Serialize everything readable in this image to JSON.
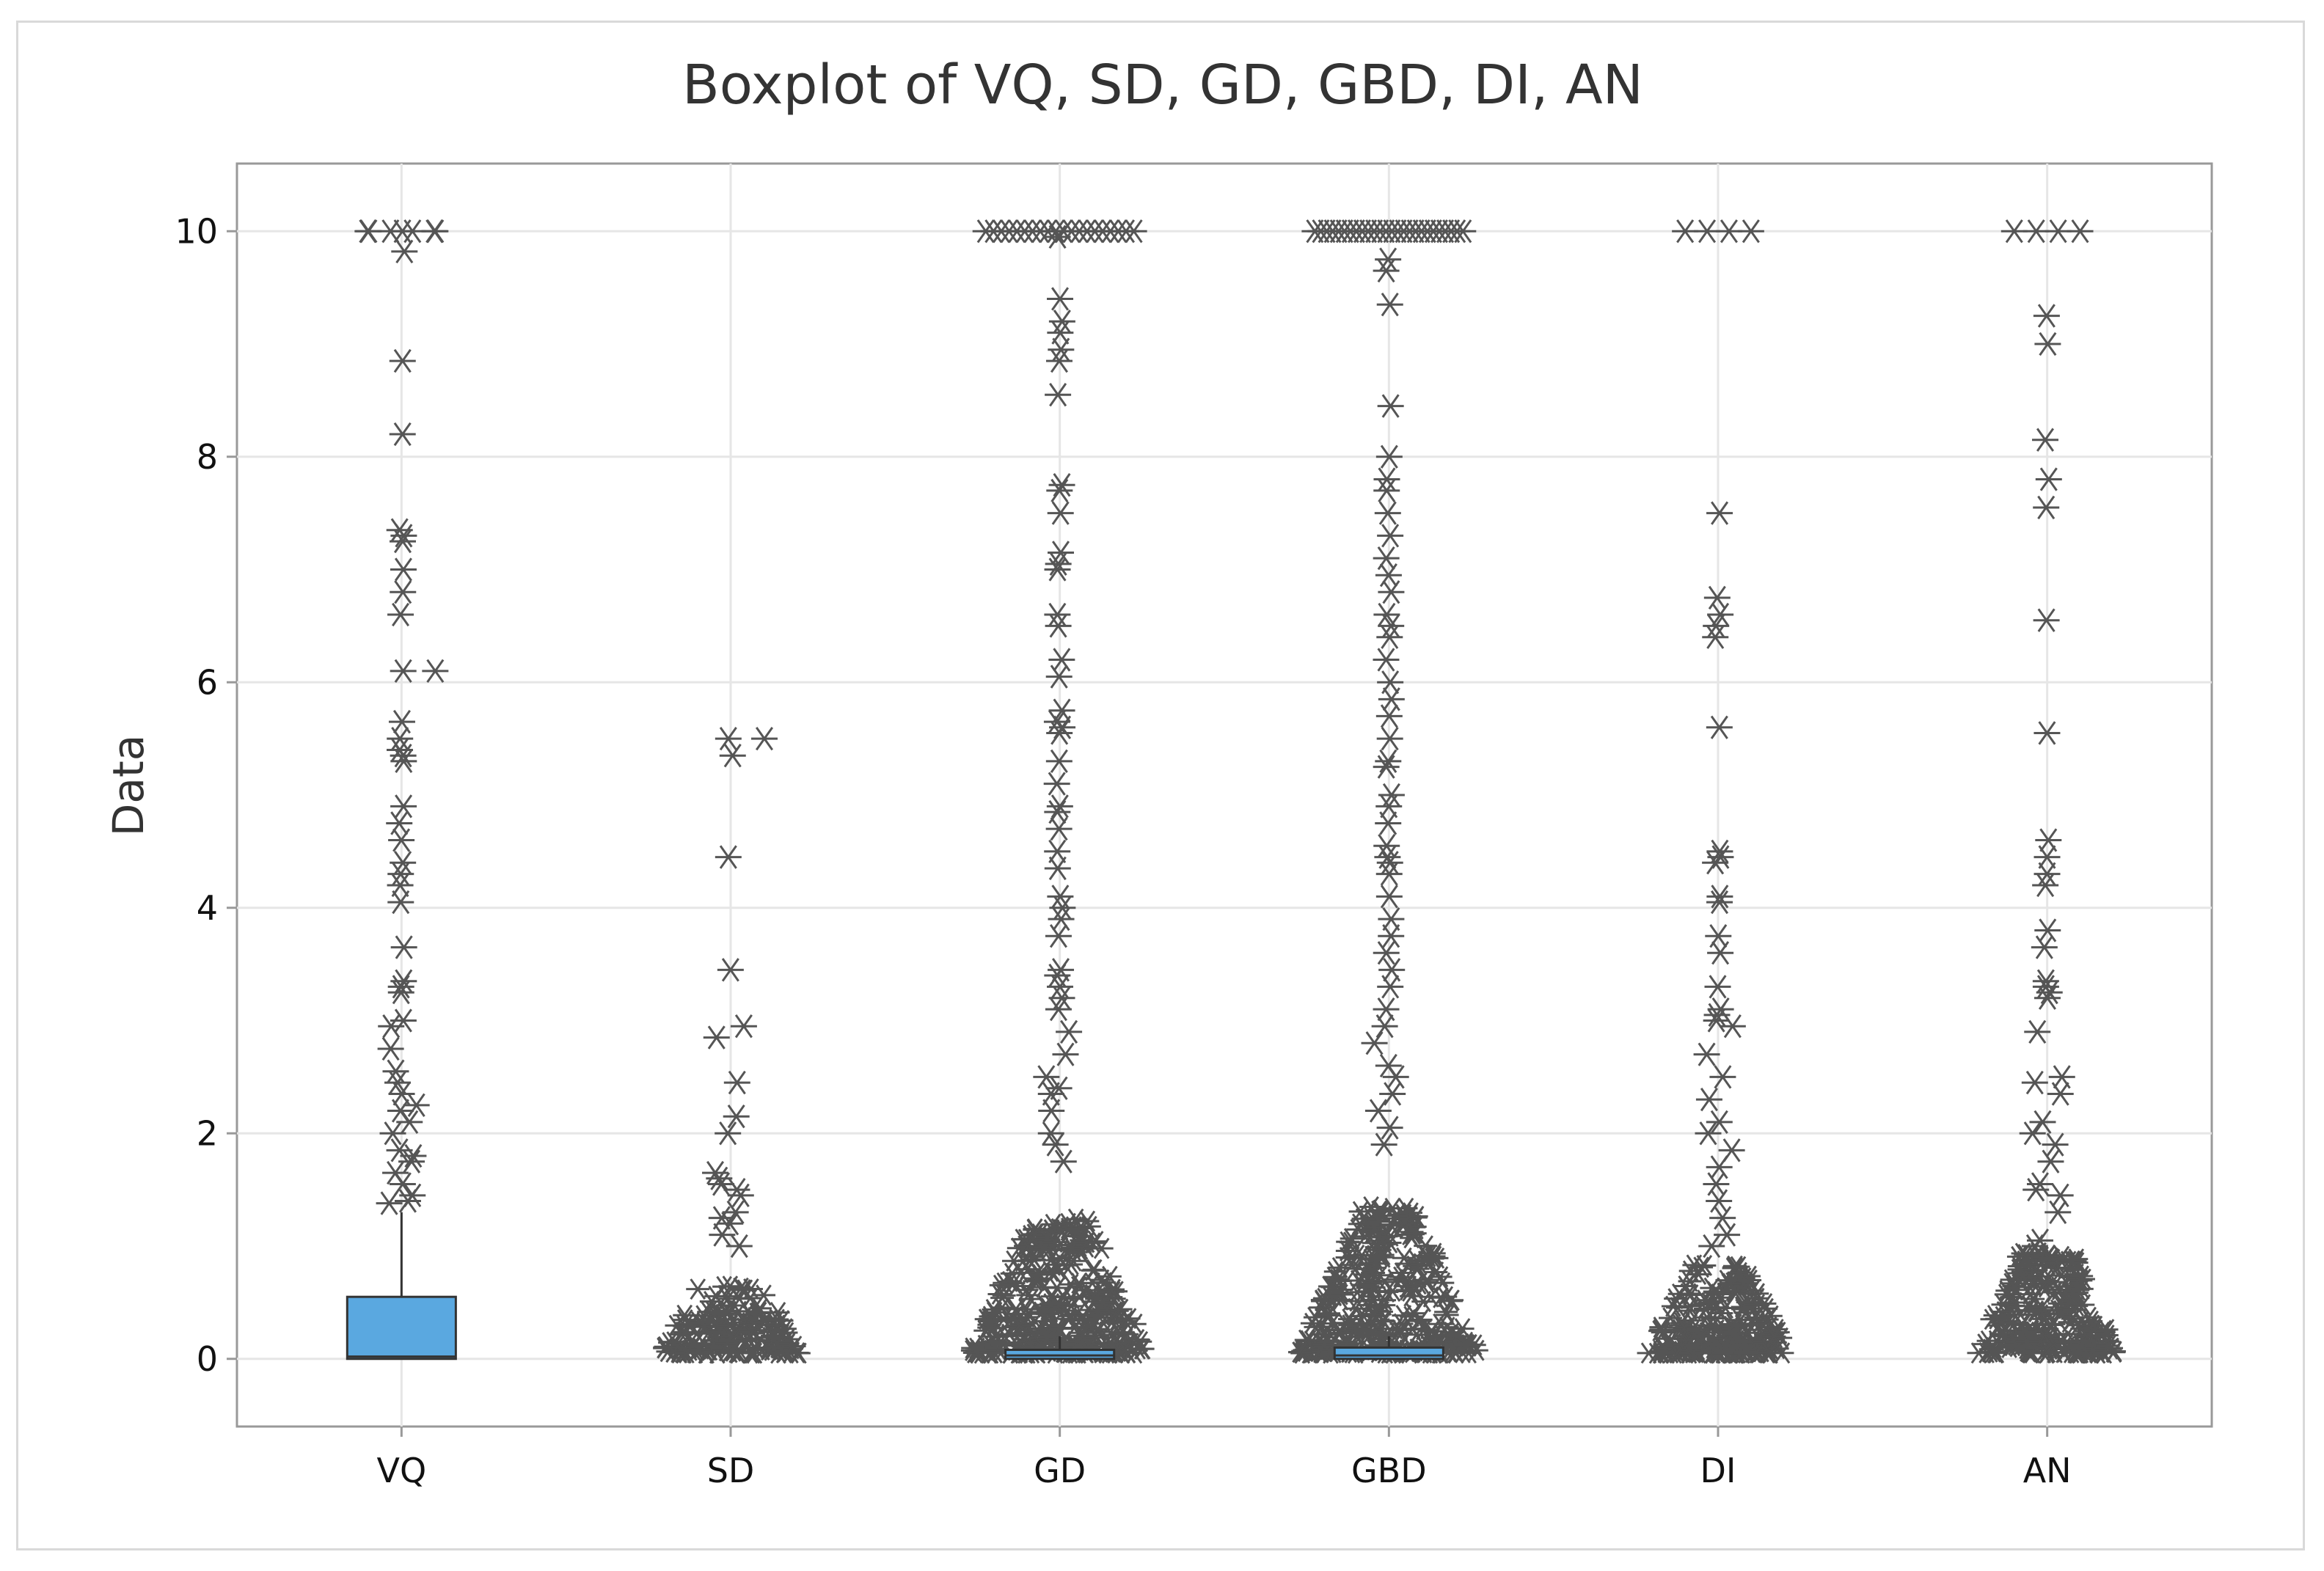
{
  "chart_data": {
    "type": "boxplot",
    "title": "Boxplot of VQ, SD, GD, GBD, DI, AN",
    "xlabel": "",
    "ylabel": "Data",
    "ylim": [
      -0.6,
      10.6
    ],
    "yticks": [
      0,
      2,
      4,
      6,
      8,
      10
    ],
    "grid": true,
    "box_color": "#5aa8e0",
    "outlier_color": "#555555",
    "outlier_symbol": "asterisk",
    "series": [
      {
        "name": "VQ",
        "box": {
          "q1": 0.0,
          "median": 0.02,
          "q3": 0.55,
          "whisker_low": 0.0,
          "whisker_high": 1.3
        },
        "outliers": [
          10,
          10,
          10,
          9.82,
          8.85,
          8.2,
          7.35,
          7.3,
          7.25,
          7.0,
          6.8,
          6.6,
          6.1,
          6.1,
          5.65,
          5.5,
          5.4,
          5.35,
          5.3,
          4.9,
          4.75,
          4.6,
          4.4,
          4.3,
          4.2,
          4.05,
          3.65,
          3.35,
          3.3,
          3.25,
          3.0,
          2.95,
          2.75,
          2.55,
          2.45,
          2.35,
          2.25,
          2.2,
          2.1,
          2.0,
          1.85,
          1.8,
          1.75,
          1.65,
          1.55,
          1.45,
          1.4,
          1.38
        ]
      },
      {
        "name": "SD",
        "box": {
          "q1": 0.0,
          "median": 0.0,
          "q3": 0.0,
          "whisker_low": 0.0,
          "whisker_high": 0.0
        },
        "outliers": [
          5.5,
          5.5,
          5.35,
          4.45,
          3.45,
          2.95,
          2.85,
          2.45,
          2.15,
          2.0,
          1.65,
          1.6,
          1.55,
          1.5,
          1.45,
          1.3,
          1.25,
          1.2,
          1.1,
          1.0
        ]
      },
      {
        "name": "GD",
        "box": {
          "q1": 0.0,
          "median": 0.03,
          "q3": 0.08,
          "whisker_low": 0.0,
          "whisker_high": 0.2
        },
        "outliers": [
          9.95,
          9.4,
          9.2,
          9.1,
          8.95,
          8.85,
          8.55,
          7.75,
          7.7,
          7.5,
          7.15,
          7.05,
          7.0,
          6.6,
          6.5,
          6.2,
          6.05,
          5.75,
          5.65,
          5.6,
          5.55,
          5.3,
          5.1,
          4.9,
          4.85,
          4.7,
          4.5,
          4.35,
          4.1,
          4.0,
          3.9,
          3.75,
          3.45,
          3.4,
          3.3,
          3.2,
          3.1,
          2.9,
          2.7,
          2.5,
          2.4,
          2.35,
          2.2,
          2.0,
          1.9,
          1.75
        ]
      },
      {
        "name": "GBD",
        "box": {
          "q1": 0.0,
          "median": 0.03,
          "q3": 0.1,
          "whisker_low": 0.0,
          "whisker_high": 0.2
        },
        "outliers": [
          9.75,
          9.65,
          9.35,
          8.45,
          8.0,
          7.8,
          7.7,
          7.5,
          7.3,
          7.1,
          6.95,
          6.8,
          6.6,
          6.5,
          6.4,
          6.2,
          6.0,
          5.85,
          5.7,
          5.5,
          5.3,
          5.25,
          5.0,
          4.9,
          4.75,
          4.55,
          4.45,
          4.4,
          4.3,
          4.1,
          3.9,
          3.75,
          3.6,
          3.45,
          3.3,
          3.1,
          2.95,
          2.8,
          2.6,
          2.5,
          2.35,
          2.2,
          2.05,
          1.9
        ]
      },
      {
        "name": "DI",
        "box": {
          "q1": 0.0,
          "median": 0.0,
          "q3": 0.0,
          "whisker_low": 0.0,
          "whisker_high": 0.0
        },
        "outliers": [
          7.5,
          6.75,
          6.6,
          6.5,
          6.4,
          5.6,
          4.5,
          4.45,
          4.4,
          4.1,
          4.05,
          3.75,
          3.6,
          3.3,
          3.1,
          3.05,
          3.0,
          2.95,
          2.7,
          2.5,
          2.3,
          2.1,
          2.0,
          1.85,
          1.7,
          1.55,
          1.4,
          1.25,
          1.1,
          1.0
        ]
      },
      {
        "name": "AN",
        "box": {
          "q1": 0.0,
          "median": 0.0,
          "q3": 0.0,
          "whisker_low": 0.0,
          "whisker_high": 0.0
        },
        "outliers": [
          9.25,
          9.0,
          8.15,
          7.8,
          7.55,
          6.55,
          5.55,
          4.6,
          4.45,
          4.3,
          4.2,
          3.8,
          3.65,
          3.35,
          3.3,
          3.25,
          3.2,
          2.9,
          2.5,
          2.45,
          2.35,
          2.1,
          2.0,
          1.9,
          1.75,
          1.55,
          1.5,
          1.45,
          1.3,
          1.05,
          1.0
        ]
      }
    ]
  }
}
